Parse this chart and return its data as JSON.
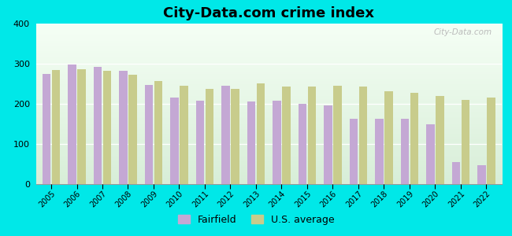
{
  "title": "City-Data.com crime index",
  "years": [
    2005,
    2006,
    2007,
    2008,
    2009,
    2010,
    2011,
    2012,
    2013,
    2014,
    2015,
    2016,
    2017,
    2018,
    2019,
    2020,
    2021,
    2022
  ],
  "fairfield": [
    275,
    298,
    293,
    283,
    248,
    215,
    207,
    245,
    205,
    208,
    200,
    197,
    162,
    162,
    162,
    150,
    55,
    48
  ],
  "us_average": [
    285,
    287,
    283,
    272,
    257,
    245,
    238,
    238,
    251,
    243,
    243,
    246,
    243,
    232,
    228,
    220,
    210,
    215
  ],
  "fairfield_color": "#c4a8d4",
  "us_avg_color": "#c8cc8c",
  "outer_background": "#00e8e8",
  "ylim": [
    0,
    400
  ],
  "yticks": [
    0,
    100,
    200,
    300,
    400
  ],
  "bar_width": 0.32,
  "legend_fairfield": "Fairfield",
  "legend_us": "U.S. average",
  "watermark": "City-Data.com"
}
